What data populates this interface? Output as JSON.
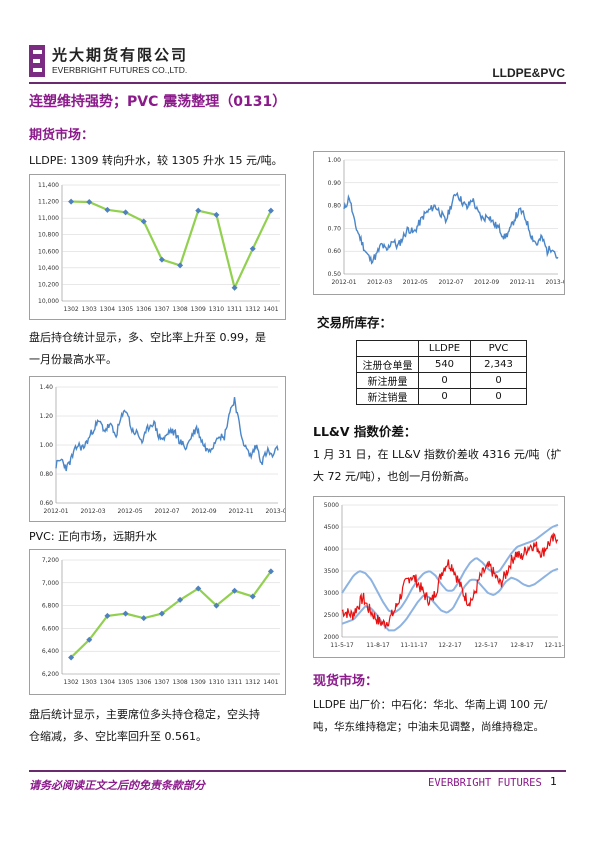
{
  "header": {
    "company_cn": "光大期货有限公司",
    "company_en": "EVERBRIGHT FUTURES CO.,LTD.",
    "report_tag": "LLDPE&PVC"
  },
  "title": "连塑维持强势；PVC 震荡整理（0131）",
  "futures": {
    "heading": "期货市场：",
    "lldpe_line": "LLDPE:  1309 转向升水，较 1305 升水 15 元/吨。",
    "lldpe_para_1": "盘后持仓统计显示，多、空比率上升至 0.99，是",
    "lldpe_para_2": "一月份最高水平。",
    "pvc_line": "PVC:  正向市场，远期升水",
    "pvc_para_1": "盘后统计显示，主要席位多头持仓稳定，空头持",
    "pvc_para_2": "仓缩减，多、空比率回升至 0.561。"
  },
  "inventory": {
    "heading": "交易所库存：",
    "columns": [
      "LLDPE",
      "PVC"
    ],
    "rows": [
      {
        "label": "注册仓单量",
        "lldpe": "540",
        "pvc": "2,343"
      },
      {
        "label": "新注册量",
        "lldpe": "0",
        "pvc": "0"
      },
      {
        "label": "新注销量",
        "lldpe": "0",
        "pvc": "0"
      }
    ]
  },
  "ll_v": {
    "heading": "LL&V 指数价差：",
    "para_1": "1 月 31 日，在 LL&V 指数价差收 4316 元/吨（扩",
    "para_2": "大 72 元/吨），也创一月份新高。"
  },
  "spot": {
    "heading": "现货市场：",
    "para_1": "LLDPE 出厂价：中石化：华北、华南上调 100 元/",
    "para_2": "吨，华东维持稳定；中油未见调整，尚维持稳定。"
  },
  "footer": {
    "disclaimer": "请务必阅读正文之后的免责条款部分",
    "brand": "EVERBRIGHT FUTURES",
    "page": "1"
  },
  "colors": {
    "brand_purple": "#8b1a8b",
    "line_green": "#92d050",
    "marker_blue": "#4f81bd",
    "series_blue": "#4a86c8",
    "band_blue": "#8db3e2",
    "spread_red": "#e81010"
  },
  "chart_data": [
    {
      "id": "lldpe_spread",
      "type": "line",
      "categories": [
        "1302",
        "1303",
        "1304",
        "1305",
        "1306",
        "1307",
        "1308",
        "1309",
        "1310",
        "1311",
        "1312",
        "1401"
      ],
      "values": [
        11200,
        11195,
        11100,
        11070,
        10960,
        10500,
        10430,
        11090,
        11040,
        10160,
        10630,
        11090
      ],
      "ylim": [
        10000,
        11400
      ],
      "yticks": [
        "10,000",
        "10,200",
        "10,400",
        "10,600",
        "10,800",
        "11,000",
        "11,200",
        "11,400"
      ]
    },
    {
      "id": "lldpe_ratio",
      "type": "line",
      "x_range": [
        "2012-01",
        "2013-01"
      ],
      "xticks": [
        "2012-01",
        "2012-03",
        "2012-05",
        "2012-07",
        "2012-09",
        "2012-11",
        "2013-01"
      ],
      "yticks": [
        "0.50",
        "0.60",
        "0.70",
        "0.80",
        "0.90",
        "1.00"
      ],
      "ylim": [
        0.5,
        1.0
      ],
      "approx_path": [
        0.78,
        0.84,
        0.72,
        0.66,
        0.6,
        0.56,
        0.58,
        0.63,
        0.6,
        0.65,
        0.62,
        0.66,
        0.7,
        0.68,
        0.72,
        0.76,
        0.78,
        0.8,
        0.77,
        0.73,
        0.8,
        0.86,
        0.82,
        0.79,
        0.83,
        0.77,
        0.74,
        0.76,
        0.72,
        0.7,
        0.66,
        0.69,
        0.75,
        0.78,
        0.74,
        0.67,
        0.63,
        0.66,
        0.6,
        0.62,
        0.56
      ]
    },
    {
      "id": "pvc_ratio",
      "type": "line",
      "x_range": [
        "2012-01",
        "2013-01"
      ],
      "xticks": [
        "2012-01",
        "2012-03",
        "2012-05",
        "2012-07",
        "2012-09",
        "2012-11",
        "2013-01"
      ],
      "yticks": [
        "0.60",
        "0.80",
        "1.00",
        "1.20",
        "1.40"
      ],
      "ylim": [
        0.6,
        1.4
      ],
      "approx_path": [
        0.86,
        0.9,
        0.84,
        0.92,
        1.0,
        0.98,
        1.04,
        1.12,
        1.16,
        1.1,
        1.14,
        1.06,
        1.18,
        1.25,
        1.1,
        1.08,
        1.02,
        1.12,
        1.16,
        1.06,
        1.04,
        1.1,
        1.08,
        1.02,
        0.98,
        1.06,
        1.12,
        1.02,
        0.96,
        1.0,
        1.08,
        1.04,
        1.22,
        1.32,
        1.1,
        0.98,
        0.92,
        1.0,
        0.88,
        0.96,
        0.92,
        0.98
      ]
    },
    {
      "id": "pvc_spread",
      "type": "line",
      "categories": [
        "1302",
        "1303",
        "1304",
        "1305",
        "1306",
        "1307",
        "1308",
        "1309",
        "1310",
        "1311",
        "1312",
        "1401"
      ],
      "values": [
        6345,
        6500,
        6710,
        6730,
        6690,
        6730,
        6850,
        6950,
        6800,
        6930,
        6880,
        7100
      ],
      "ylim": [
        6200,
        7200
      ],
      "yticks": [
        "6,200",
        "6,400",
        "6,600",
        "6,800",
        "7,000",
        "7,200"
      ]
    },
    {
      "id": "llv_index_spread",
      "type": "line",
      "xticks": [
        "11-5-17",
        "11-8-17",
        "11-11-17",
        "12-2-17",
        "12-5-17",
        "12-8-17",
        "12-11-17"
      ],
      "yticks": [
        "2000",
        "2500",
        "3000",
        "3500",
        "4000",
        "4500",
        "5000"
      ],
      "ylim": [
        2000,
        5000
      ],
      "series": [
        {
          "values_approx": [
            2600,
            2550,
            2500,
            2700,
            2900,
            2650,
            2500,
            2350,
            2300,
            2400,
            2600,
            2900,
            3200,
            3400,
            3300,
            3100,
            2900,
            2800,
            3100,
            3500,
            3700,
            3600,
            3300,
            3000,
            2800,
            2900,
            3300,
            3500,
            3600,
            3400,
            3200,
            3400,
            3700,
            3900,
            3800,
            4000,
            4100,
            4050,
            3900,
            4100,
            4200,
            4300
          ]
        },
        {
          "values_approx": [
            3000,
            3200,
            3400,
            3500,
            3450,
            3300,
            3050,
            2800,
            2600,
            2550,
            2650,
            2850,
            3100,
            3300,
            3450,
            3500,
            3400,
            3200,
            3050,
            3050,
            3250,
            3500,
            3700,
            3800,
            3700,
            3550,
            3450,
            3500,
            3700,
            3900,
            4050,
            4100,
            4150,
            4200,
            4300,
            4400,
            4500,
            4550
          ]
        },
        {
          "values_approx": [
            2300,
            2350,
            2400,
            2550,
            2700,
            2650,
            2500,
            2300,
            2150,
            2150,
            2250,
            2400,
            2600,
            2800,
            2950,
            2900,
            2750,
            2600,
            2550,
            2650,
            2900,
            3150,
            3300,
            3300,
            3150,
            3000,
            2950,
            3050,
            3250,
            3350,
            3300,
            3200,
            3150,
            3200,
            3300,
            3400,
            3500,
            3550
          ]
        }
      ]
    }
  ]
}
